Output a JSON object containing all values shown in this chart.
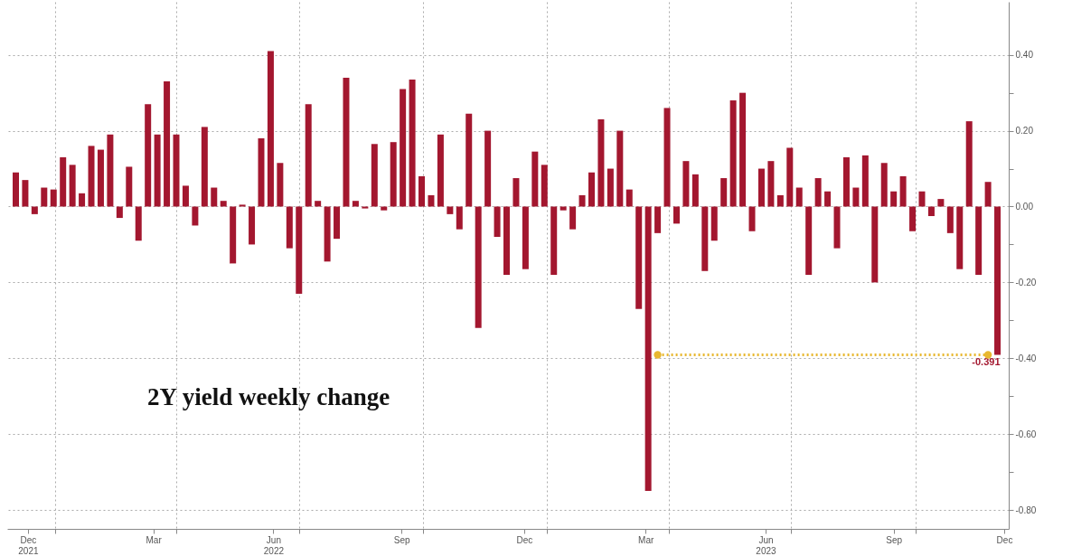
{
  "chart_data": {
    "type": "bar",
    "annotations": [
      "2Y yield weekly change"
    ],
    "x": [
      "2021-12-03",
      "2021-12-10",
      "2021-12-17",
      "2021-12-24",
      "2021-12-31",
      "2022-01-07",
      "2022-01-14",
      "2022-01-21",
      "2022-01-28",
      "2022-02-04",
      "2022-02-11",
      "2022-02-18",
      "2022-02-25",
      "2022-03-04",
      "2022-03-11",
      "2022-03-18",
      "2022-03-25",
      "2022-04-01",
      "2022-04-08",
      "2022-04-15",
      "2022-04-22",
      "2022-04-29",
      "2022-05-06",
      "2022-05-13",
      "2022-05-20",
      "2022-05-27",
      "2022-06-03",
      "2022-06-10",
      "2022-06-17",
      "2022-06-24",
      "2022-07-01",
      "2022-07-08",
      "2022-07-15",
      "2022-07-22",
      "2022-07-29",
      "2022-08-05",
      "2022-08-12",
      "2022-08-19",
      "2022-08-26",
      "2022-09-02",
      "2022-09-09",
      "2022-09-16",
      "2022-09-23",
      "2022-09-30",
      "2022-10-07",
      "2022-10-14",
      "2022-10-21",
      "2022-10-28",
      "2022-11-04",
      "2022-11-11",
      "2022-11-18",
      "2022-11-25",
      "2022-12-02",
      "2022-12-09",
      "2022-12-16",
      "2022-12-23",
      "2022-12-30",
      "2023-01-06",
      "2023-01-13",
      "2023-01-20",
      "2023-01-27",
      "2023-02-03",
      "2023-02-10",
      "2023-02-17",
      "2023-02-24",
      "2023-03-03",
      "2023-03-10",
      "2023-03-17",
      "2023-03-24",
      "2023-03-31",
      "2023-04-07",
      "2023-04-14",
      "2023-04-21",
      "2023-04-28",
      "2023-05-05",
      "2023-05-12",
      "2023-05-19",
      "2023-05-26",
      "2023-06-02",
      "2023-06-09",
      "2023-06-16",
      "2023-06-23",
      "2023-06-30",
      "2023-07-07",
      "2023-07-14",
      "2023-07-21",
      "2023-07-28",
      "2023-08-04",
      "2023-08-11",
      "2023-08-18",
      "2023-08-25",
      "2023-09-01",
      "2023-09-08",
      "2023-09-15",
      "2023-09-22",
      "2023-09-29",
      "2023-10-06",
      "2023-10-13",
      "2023-10-20",
      "2023-10-27",
      "2023-11-03",
      "2023-11-10",
      "2023-11-17",
      "2023-11-24",
      "2023-12-01"
    ],
    "series": [
      {
        "color": "#a3172f",
        "values": [
          0.09,
          0.07,
          -0.02,
          0.05,
          0.045,
          0.13,
          0.11,
          0.035,
          0.16,
          0.15,
          0.19,
          -0.03,
          0.105,
          -0.09,
          0.27,
          0.19,
          0.33,
          0.19,
          0.055,
          -0.05,
          0.21,
          0.05,
          0.015,
          -0.15,
          0.005,
          -0.1,
          0.18,
          0.41,
          0.115,
          -0.11,
          -0.23,
          0.27,
          0.015,
          -0.145,
          -0.085,
          0.34,
          0.015,
          -0.005,
          0.165,
          -0.01,
          0.17,
          0.31,
          0.335,
          0.08,
          0.03,
          0.19,
          -0.02,
          -0.06,
          0.245,
          -0.32,
          0.2,
          -0.08,
          -0.18,
          0.075,
          -0.165,
          0.145,
          0.11,
          -0.18,
          -0.01,
          -0.06,
          0.03,
          0.09,
          0.23,
          0.1,
          0.2,
          0.045,
          -0.27,
          -0.75,
          -0.07,
          0.26,
          -0.045,
          0.12,
          0.085,
          -0.17,
          -0.09,
          0.075,
          0.28,
          0.3,
          -0.065,
          0.1,
          0.12,
          0.03,
          0.155,
          0.05,
          -0.18,
          0.075,
          0.04,
          -0.11,
          0.13,
          0.05,
          0.135,
          -0.2,
          0.115,
          0.04,
          0.08,
          -0.065,
          0.04,
          -0.025,
          0.02,
          -0.07,
          -0.165,
          0.225,
          -0.18,
          0.065,
          -0.391
        ],
        "value_labels": [
          null,
          null,
          null,
          null,
          null,
          null,
          null,
          null,
          null,
          null,
          null,
          null,
          null,
          null,
          null,
          null,
          null,
          null,
          null,
          null,
          null,
          null,
          null,
          null,
          null,
          null,
          null,
          null,
          null,
          null,
          null,
          null,
          null,
          null,
          null,
          null,
          null,
          null,
          null,
          null,
          null,
          null,
          null,
          null,
          null,
          null,
          null,
          null,
          null,
          null,
          null,
          null,
          null,
          null,
          null,
          null,
          null,
          null,
          null,
          null,
          null,
          null,
          null,
          null,
          null,
          null,
          null,
          null,
          null,
          null,
          null,
          null,
          null,
          null,
          null,
          null,
          null,
          null,
          null,
          null,
          null,
          null,
          null,
          null,
          null,
          null,
          null,
          null,
          null,
          null,
          null,
          null,
          null,
          null,
          null,
          null,
          null,
          null,
          null,
          null,
          null,
          null,
          null,
          null,
          "-0.391"
        ]
      },
      {
        "type": "line",
        "x": [
          "2023-03-24",
          "2023-11-24"
        ],
        "values": [
          -0.391,
          -0.391
        ],
        "color": "#e8b830",
        "line_style": "dotted",
        "marker": "circle"
      }
    ],
    "xlim": [
      "2021-11-30",
      "2023-12-06"
    ],
    "xticks": [
      {
        "value": "2021-12-12",
        "label": "Dec\n2021"
      },
      {
        "value": "2022-01-01",
        "label": null
      },
      {
        "value": "2022-03-15",
        "label": "Mar"
      },
      {
        "value": "2022-04-01",
        "label": null
      },
      {
        "value": "2022-06-12",
        "label": "Jun\n2022"
      },
      {
        "value": "2022-07-01",
        "label": null
      },
      {
        "value": "2022-09-15",
        "label": "Sep"
      },
      {
        "value": "2022-10-01",
        "label": null
      },
      {
        "value": "2022-12-15",
        "label": "Dec"
      },
      {
        "value": "2023-01-01",
        "label": null
      },
      {
        "value": "2023-03-15",
        "label": "Mar"
      },
      {
        "value": "2023-04-01",
        "label": null
      },
      {
        "value": "2023-06-12",
        "label": "Jun\n2023"
      },
      {
        "value": "2023-07-01",
        "label": null
      },
      {
        "value": "2023-09-15",
        "label": "Sep"
      },
      {
        "value": "2023-10-01",
        "label": null
      },
      {
        "value": "2023-12-06",
        "label": "Dec"
      }
    ],
    "ylim": [
      -0.85,
      0.54
    ],
    "yticks": [
      {
        "value": 0.4,
        "label": "0.40"
      },
      {
        "value": 0.3,
        "label": null
      },
      {
        "value": 0.2,
        "label": "0.20"
      },
      {
        "value": 0.1,
        "label": null
      },
      {
        "value": 0,
        "label": "0.00"
      },
      {
        "value": -0.1,
        "label": null
      },
      {
        "value": -0.2,
        "label": "-0.20"
      },
      {
        "value": -0.3,
        "label": null
      },
      {
        "value": -0.4,
        "label": "-0.40"
      },
      {
        "value": -0.5,
        "label": null
      },
      {
        "value": -0.6,
        "label": "-0.60"
      },
      {
        "value": -0.7,
        "label": null
      },
      {
        "value": -0.8,
        "label": "-0.80"
      }
    ],
    "grid": true
  }
}
